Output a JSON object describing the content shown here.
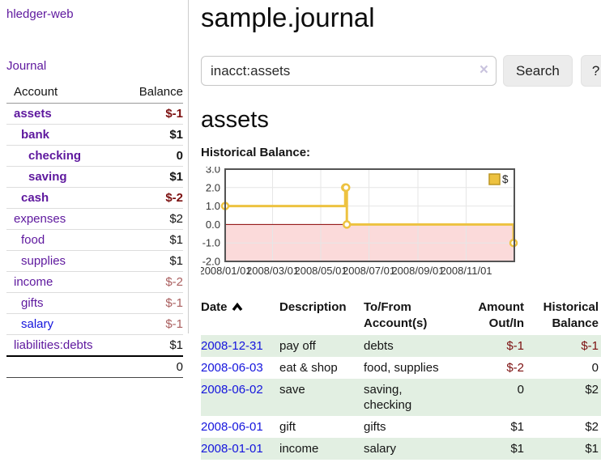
{
  "colors": {
    "link_purple": "#5e189e",
    "link_blue": "#1414dd",
    "neg_dark": "#7c1010",
    "neg_light": "#aa5f5f",
    "row_green": "#e2efe2",
    "chart_line": "#edc240",
    "chart_negative_bg": "#fbdada",
    "chart_zero_line": "#8b0000"
  },
  "sidebar": {
    "brand": "hledger-web",
    "nav": [
      {
        "label": "Journal"
      }
    ],
    "accounts": {
      "headers": [
        "Account",
        "Balance"
      ],
      "rows": [
        {
          "name": "assets",
          "balance": "$-1",
          "level": 0,
          "bold": true,
          "balance_style": "neg"
        },
        {
          "name": "bank",
          "balance": "$1",
          "level": 1,
          "bold": true,
          "balance_style": "pos"
        },
        {
          "name": "checking",
          "balance": "0",
          "level": 2,
          "bold": true,
          "balance_style": "pos"
        },
        {
          "name": "saving",
          "balance": "$1",
          "level": 2,
          "bold": true,
          "balance_style": "pos"
        },
        {
          "name": "cash",
          "balance": "$-2",
          "level": 1,
          "bold": true,
          "balance_style": "neg"
        },
        {
          "name": "expenses",
          "balance": "$2",
          "level": 0,
          "bold": false,
          "balance_style": "pos"
        },
        {
          "name": "food",
          "balance": "$1",
          "level": 1,
          "bold": false,
          "balance_style": "pos"
        },
        {
          "name": "supplies",
          "balance": "$1",
          "level": 1,
          "bold": false,
          "balance_style": "pos"
        },
        {
          "name": "income",
          "balance": "$-2",
          "level": 0,
          "bold": false,
          "balance_style": "neg-light"
        },
        {
          "name": "gifts",
          "balance": "$-1",
          "level": 1,
          "bold": false,
          "balance_style": "neg-light"
        },
        {
          "name": "salary",
          "balance": "$-1",
          "level": 1,
          "bold": false,
          "balance_style": "neg-light",
          "link_style": "blue"
        },
        {
          "name": "liabilities:debts",
          "balance": "$1",
          "level": 0,
          "bold": false,
          "balance_style": "pos"
        }
      ],
      "total": "0"
    }
  },
  "main": {
    "title": "sample.journal",
    "search": {
      "value": "inacct:assets",
      "clear_icon": "×",
      "button_label": "Search",
      "help_label": "?"
    },
    "account_heading": "assets",
    "chart_label": "Historical Balance:"
  },
  "chart_data": {
    "type": "line",
    "step": true,
    "title": "Historical Balance",
    "series": [
      {
        "name": "$",
        "points": [
          [
            "2008-01-01",
            1
          ],
          [
            "2008-06-01",
            2
          ],
          [
            "2008-06-02",
            2
          ],
          [
            "2008-06-03",
            0
          ],
          [
            "2008-12-31",
            -1
          ]
        ]
      }
    ],
    "x_range": [
      "2008-01-01",
      "2009-01-01"
    ],
    "x_ticks": [
      "2008/01/01",
      "2008/03/01",
      "2008/05/01",
      "2008/07/01",
      "2008/09/01",
      "2008/11/01"
    ],
    "y_ticks": [
      "3.0",
      "2.0",
      "1.0",
      "0.0",
      "-1.0",
      "-2.0"
    ],
    "ylim": [
      -2,
      3
    ],
    "grid": true,
    "legend": [
      "$"
    ],
    "legend_position": "top-right",
    "negative_region_shaded": true
  },
  "register": {
    "headers": [
      {
        "label": "Date",
        "align": "left",
        "sorted": "asc"
      },
      {
        "label": "Description",
        "align": "left"
      },
      {
        "label": "To/From Account(s)",
        "align": "left"
      },
      {
        "label": "Amount Out/In",
        "align": "right"
      },
      {
        "label": "Historical Balance",
        "align": "right"
      }
    ],
    "rows": [
      {
        "date": "2008-12-31",
        "description": "pay off",
        "accounts": "debts",
        "amount": "$-1",
        "amount_style": "neg",
        "balance": "$-1",
        "balance_style": "neg",
        "shaded": true
      },
      {
        "date": "2008-06-03",
        "description": "eat & shop",
        "accounts": "food, supplies",
        "amount": "$-2",
        "amount_style": "neg",
        "balance": "0",
        "balance_style": "pos",
        "shaded": false
      },
      {
        "date": "2008-06-02",
        "description": "save",
        "accounts": "saving,\nchecking",
        "amount": "0",
        "amount_style": "pos",
        "balance": "$2",
        "balance_style": "pos",
        "shaded": true
      },
      {
        "date": "2008-06-01",
        "description": "gift",
        "accounts": "gifts",
        "amount": "$1",
        "amount_style": "pos",
        "balance": "$2",
        "balance_style": "pos",
        "shaded": false
      },
      {
        "date": "2008-01-01",
        "description": "income",
        "accounts": "salary",
        "amount": "$1",
        "amount_style": "pos",
        "balance": "$1",
        "balance_style": "pos",
        "shaded": true
      }
    ]
  }
}
